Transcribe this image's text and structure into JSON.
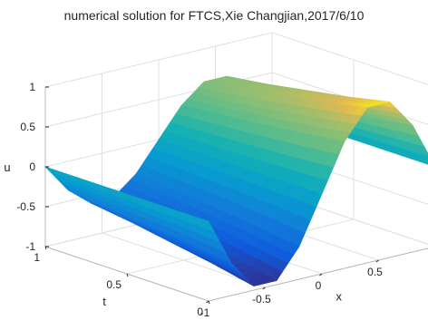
{
  "chart_data": {
    "type": "surface",
    "title": "numerical solution for FTCS,Xie Changjian,2017/6/10",
    "xlabel": "x",
    "ylabel": "t",
    "zlabel": "u",
    "xlim": [
      -1,
      1
    ],
    "ylim": [
      0,
      1
    ],
    "zlim": [
      -1,
      1
    ],
    "x_ticks": [
      "-1",
      "-0.5",
      "0",
      "0.5"
    ],
    "y_ticks": [
      "0",
      "0.5",
      "1"
    ],
    "z_ticks": [
      "-1",
      "-0.5",
      "0",
      "0.5",
      "1"
    ],
    "grid": true,
    "colormap": "parula",
    "x": [
      -1,
      -0.8,
      -0.6,
      -0.4,
      -0.2,
      0,
      0.2,
      0.4,
      0.6,
      0.8,
      1
    ],
    "t": [
      0,
      0.25,
      0.5,
      0.75,
      1
    ],
    "u": [
      [
        0,
        -0.59,
        -0.95,
        -0.95,
        -0.59,
        0,
        0.59,
        0.95,
        0.95,
        0.59,
        0
      ],
      [
        0,
        -0.52,
        -0.84,
        -0.84,
        -0.52,
        0,
        0.52,
        0.84,
        0.84,
        0.52,
        0
      ],
      [
        0,
        -0.46,
        -0.75,
        -0.75,
        -0.46,
        0,
        0.46,
        0.75,
        0.75,
        0.46,
        0
      ],
      [
        0,
        -0.41,
        -0.66,
        -0.66,
        -0.41,
        0,
        0.41,
        0.66,
        0.66,
        0.41,
        0
      ],
      [
        0,
        -0.36,
        -0.59,
        -0.59,
        -0.36,
        0,
        0.36,
        0.59,
        0.59,
        0.36,
        0
      ]
    ]
  }
}
